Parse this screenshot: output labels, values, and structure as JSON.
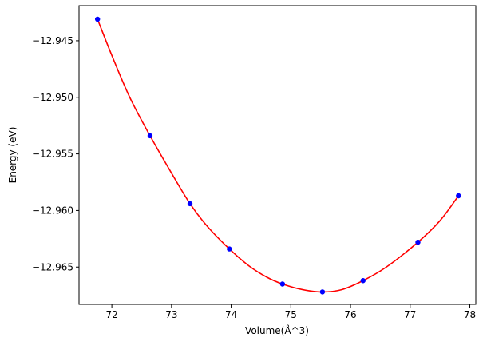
{
  "chart_data": {
    "type": "scatter",
    "title": "",
    "xlabel": "Volume(Å^3)",
    "ylabel": "Energy (eV)",
    "xlim": [
      71.45,
      78.1
    ],
    "ylim": [
      -12.9683,
      -12.9419
    ],
    "x_ticks": [
      72,
      73,
      74,
      75,
      76,
      77,
      78
    ],
    "y_ticks": [
      -12.945,
      -12.95,
      -12.955,
      -12.96,
      -12.965
    ],
    "x_tick_labels": [
      "72",
      "73",
      "74",
      "75",
      "76",
      "77",
      "78"
    ],
    "y_tick_labels": [
      "−12.945",
      "−12.950",
      "−12.955",
      "−12.960",
      "−12.965"
    ],
    "grid": false,
    "legend": "none",
    "series": [
      {
        "kind": "points",
        "color": "#0000ff",
        "x": [
          71.76,
          72.64,
          73.31,
          73.97,
          74.86,
          75.53,
          76.21,
          77.13,
          77.81
        ],
        "y": [
          -12.9431,
          -12.9534,
          -12.9594,
          -12.9634,
          -12.9665,
          -12.9672,
          -12.9662,
          -12.9628,
          -12.9587
        ]
      },
      {
        "kind": "fit-line",
        "color": "#ff0000",
        "x": [
          71.76,
          72.0,
          72.3,
          72.64,
          73.0,
          73.31,
          73.6,
          73.97,
          74.3,
          74.6,
          74.86,
          75.2,
          75.53,
          75.85,
          76.21,
          76.6,
          77.13,
          77.5,
          77.81
        ],
        "y": [
          -12.9431,
          -12.9463,
          -12.95,
          -12.9534,
          -12.9567,
          -12.9594,
          -12.9614,
          -12.9634,
          -12.9649,
          -12.9659,
          -12.9665,
          -12.967,
          -12.9672,
          -12.967,
          -12.9662,
          -12.965,
          -12.9628,
          -12.9609,
          -12.9587
        ]
      }
    ]
  }
}
